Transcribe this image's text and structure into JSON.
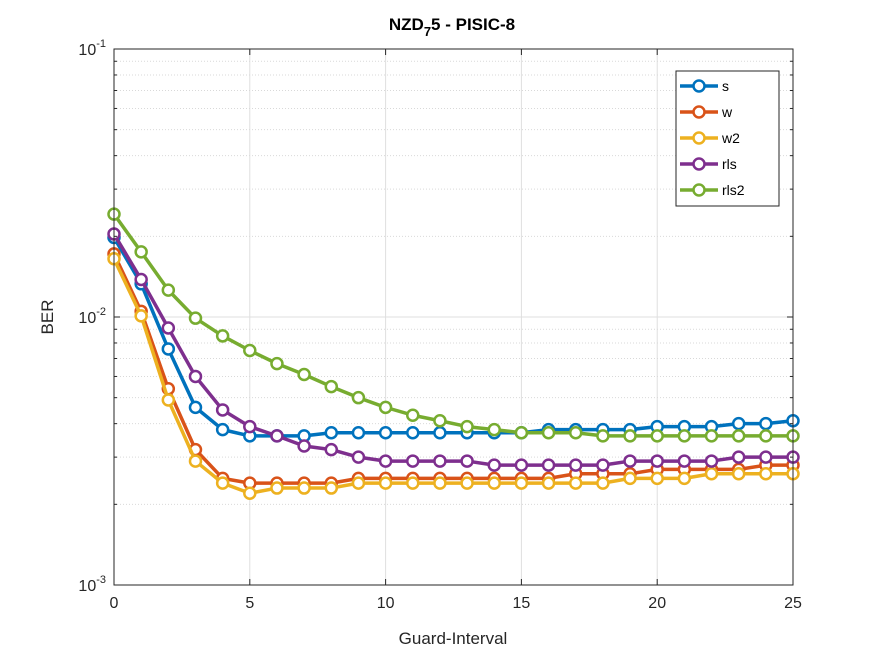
{
  "chart_data": {
    "type": "line",
    "title_main": "NZD",
    "title_sub": "7",
    "title_rest": "5 - PISIC-8",
    "xlabel": "Guard-Interval",
    "ylabel": "BER",
    "xlim": [
      0,
      25
    ],
    "ylim": [
      0.001,
      0.1
    ],
    "yscale": "log",
    "grid": true,
    "legend_position": "top-right",
    "x_ticks": [
      0,
      5,
      10,
      15,
      20,
      25
    ],
    "y_ticks": [
      {
        "value": 0.1,
        "base": "10",
        "exp": "-1"
      },
      {
        "value": 0.01,
        "base": "10",
        "exp": "-2"
      },
      {
        "value": 0.001,
        "base": "10",
        "exp": "-3"
      }
    ],
    "x": [
      0,
      1,
      2,
      3,
      4,
      5,
      6,
      7,
      8,
      9,
      10,
      11,
      12,
      13,
      14,
      15,
      16,
      17,
      18,
      19,
      20,
      21,
      22,
      23,
      24,
      25
    ],
    "series": [
      {
        "name": "s",
        "color": "#0072BD",
        "values": [
          0.0198,
          0.0133,
          0.0076,
          0.0046,
          0.0038,
          0.0036,
          0.0036,
          0.0036,
          0.0037,
          0.0037,
          0.0037,
          0.0037,
          0.0037,
          0.0037,
          0.0037,
          0.0037,
          0.0038,
          0.0038,
          0.0038,
          0.0038,
          0.0039,
          0.0039,
          0.0039,
          0.004,
          0.004,
          0.0041
        ]
      },
      {
        "name": "w",
        "color": "#D95319",
        "values": [
          0.0172,
          0.0105,
          0.0054,
          0.0032,
          0.0025,
          0.0024,
          0.0024,
          0.0024,
          0.0024,
          0.0025,
          0.0025,
          0.0025,
          0.0025,
          0.0025,
          0.0025,
          0.0025,
          0.0025,
          0.0026,
          0.0026,
          0.0026,
          0.0027,
          0.0027,
          0.0027,
          0.0027,
          0.0028,
          0.0028
        ]
      },
      {
        "name": "w2",
        "color": "#EDB120",
        "values": [
          0.0165,
          0.0101,
          0.0049,
          0.0029,
          0.0024,
          0.0022,
          0.0023,
          0.0023,
          0.0023,
          0.0024,
          0.0024,
          0.0024,
          0.0024,
          0.0024,
          0.0024,
          0.0024,
          0.0024,
          0.0024,
          0.0024,
          0.0025,
          0.0025,
          0.0025,
          0.0026,
          0.0026,
          0.0026,
          0.0026
        ]
      },
      {
        "name": "rls",
        "color": "#7E2F8E",
        "values": [
          0.0204,
          0.0138,
          0.0091,
          0.006,
          0.0045,
          0.0039,
          0.0036,
          0.0033,
          0.0032,
          0.003,
          0.0029,
          0.0029,
          0.0029,
          0.0029,
          0.0028,
          0.0028,
          0.0028,
          0.0028,
          0.0028,
          0.0029,
          0.0029,
          0.0029,
          0.0029,
          0.003,
          0.003,
          0.003
        ]
      },
      {
        "name": "rls2",
        "color": "#77AC30",
        "values": [
          0.0242,
          0.0175,
          0.0126,
          0.0099,
          0.0085,
          0.0075,
          0.0067,
          0.0061,
          0.0055,
          0.005,
          0.0046,
          0.0043,
          0.0041,
          0.0039,
          0.0038,
          0.0037,
          0.0037,
          0.0037,
          0.0036,
          0.0036,
          0.0036,
          0.0036,
          0.0036,
          0.0036,
          0.0036,
          0.0036
        ]
      }
    ]
  }
}
